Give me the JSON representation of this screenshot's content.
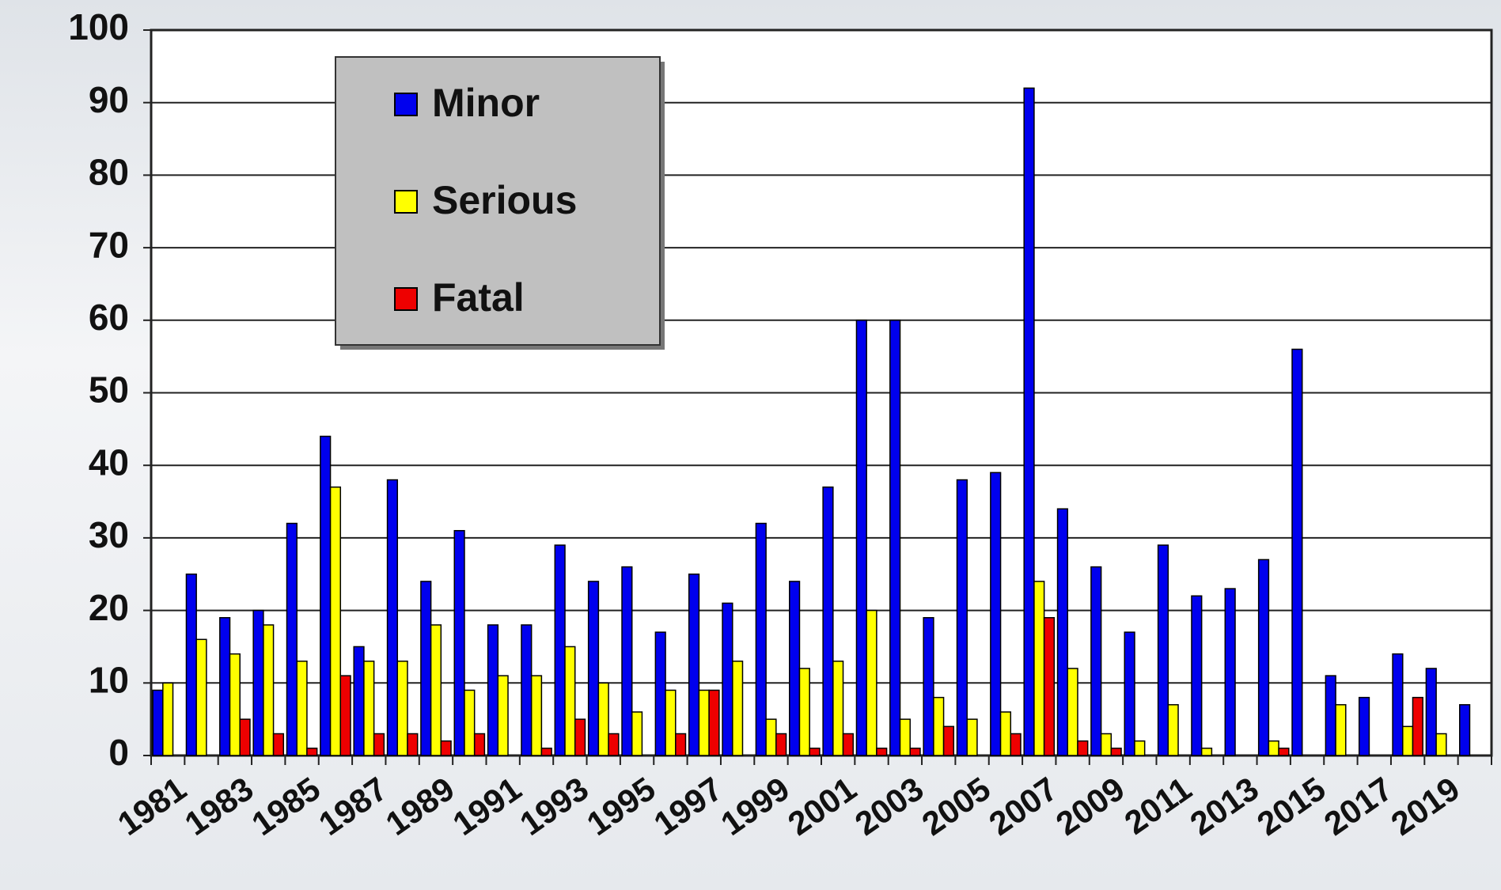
{
  "chart_data": {
    "type": "bar",
    "categories": [
      "1981",
      null,
      "1983",
      null,
      "1985",
      null,
      "1987",
      null,
      "1989",
      null,
      "1991",
      null,
      "1993",
      null,
      "1995",
      null,
      "1997",
      null,
      "1999",
      null,
      "2001",
      null,
      "2003",
      null,
      "2005",
      null,
      "2007",
      null,
      "2009",
      null,
      "2011",
      null,
      "2013",
      null,
      "2015",
      null,
      "2017",
      null,
      "2019",
      null
    ],
    "series": [
      {
        "name": "Minor",
        "color": "#0000ee",
        "values": [
          9,
          25,
          19,
          20,
          32,
          44,
          15,
          38,
          24,
          31,
          18,
          18,
          29,
          24,
          26,
          17,
          25,
          21,
          32,
          24,
          37,
          60,
          60,
          19,
          38,
          39,
          92,
          34,
          26,
          17,
          29,
          22,
          23,
          27,
          56,
          11,
          8,
          14,
          12,
          7
        ]
      },
      {
        "name": "Serious",
        "color": "#ffff00",
        "values": [
          10,
          16,
          14,
          18,
          13,
          37,
          13,
          13,
          18,
          9,
          11,
          11,
          15,
          10,
          6,
          9,
          9,
          13,
          5,
          12,
          13,
          20,
          5,
          8,
          5,
          6,
          24,
          12,
          3,
          2,
          7,
          1,
          0,
          2,
          0,
          7,
          0,
          4,
          3,
          0
        ]
      },
      {
        "name": "Fatal",
        "color": "#ee0000",
        "values": [
          0,
          0,
          5,
          3,
          1,
          11,
          3,
          3,
          2,
          3,
          0,
          1,
          5,
          3,
          0,
          3,
          9,
          0,
          3,
          1,
          3,
          1,
          1,
          4,
          0,
          3,
          19,
          2,
          1,
          0,
          0,
          0,
          0,
          1,
          0,
          0,
          0,
          8,
          0,
          0
        ]
      }
    ],
    "ylim": [
      0,
      100
    ],
    "yticks": [
      0,
      10,
      20,
      30,
      40,
      50,
      60,
      70,
      80,
      90,
      100
    ],
    "grid": true,
    "legend": "upper left"
  }
}
